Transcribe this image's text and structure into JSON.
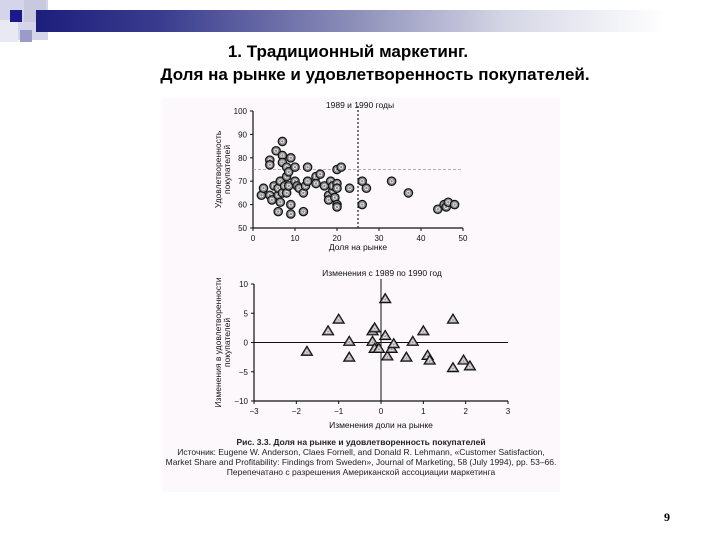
{
  "slide": {
    "title_line1": "1. Традиционный маркетинг.",
    "title_line2": "Доля на рынке и удовлетворенность покупателей.",
    "page_number": "9",
    "accent_color": "#1c1e7c"
  },
  "caption": {
    "figure_label": "Рис. 3.3. Доля на рынке и удовлетворенность покупателей",
    "source": "Источник: Eugene W. Anderson, Claes Fornell, and Donald R. Lehmann, «Customer Satisfaction, Market Share and Profitability: Findings from Sweden», Journal of Marketing, 58 (July 1994), pp. 53–66. Перепечатано с разрешения Американской ассоциации маркетинга"
  },
  "chart_data": [
    {
      "type": "scatter",
      "title": "1989 и 1990 годы",
      "xlabel": "Доля на рынке",
      "ylabel": "Удовлетворенность покупателей",
      "xlim": [
        0,
        50
      ],
      "ylim": [
        50,
        100
      ],
      "xticks": [
        0,
        10,
        20,
        30,
        40,
        50
      ],
      "yticks": [
        50,
        60,
        70,
        80,
        90,
        100
      ],
      "reference_lines": {
        "vertical_x": 25,
        "horizontal_y": 75
      },
      "marker": "circle",
      "points": [
        [
          2,
          64
        ],
        [
          2.5,
          67
        ],
        [
          4,
          64
        ],
        [
          4,
          79
        ],
        [
          4,
          77
        ],
        [
          4.5,
          62
        ],
        [
          5,
          68
        ],
        [
          5.5,
          83
        ],
        [
          6,
          57
        ],
        [
          6,
          64
        ],
        [
          6,
          67
        ],
        [
          6.5,
          61
        ],
        [
          6.5,
          70
        ],
        [
          7,
          87
        ],
        [
          7,
          81
        ],
        [
          7,
          78
        ],
        [
          7,
          65
        ],
        [
          7.5,
          68
        ],
        [
          8,
          76
        ],
        [
          8,
          72
        ],
        [
          8,
          65
        ],
        [
          8.5,
          74
        ],
        [
          8.5,
          68
        ],
        [
          9,
          80
        ],
        [
          9,
          60
        ],
        [
          9,
          56
        ],
        [
          10,
          76
        ],
        [
          10,
          70
        ],
        [
          10.5,
          68
        ],
        [
          11,
          67
        ],
        [
          12,
          65
        ],
        [
          12,
          57
        ],
        [
          12.5,
          68
        ],
        [
          13,
          76
        ],
        [
          13,
          70
        ],
        [
          15,
          72
        ],
        [
          15,
          69
        ],
        [
          16,
          73
        ],
        [
          17,
          68
        ],
        [
          18,
          64
        ],
        [
          18,
          62
        ],
        [
          18.5,
          70
        ],
        [
          19,
          66
        ],
        [
          19,
          68
        ],
        [
          19.5,
          63
        ],
        [
          20,
          69
        ],
        [
          20,
          67
        ],
        [
          20,
          60
        ],
        [
          20,
          59
        ],
        [
          20,
          75
        ],
        [
          21,
          76
        ],
        [
          23,
          67
        ],
        [
          26,
          70
        ],
        [
          26,
          60
        ],
        [
          27,
          67
        ],
        [
          33,
          70
        ],
        [
          37,
          65
        ],
        [
          44,
          58
        ],
        [
          45.5,
          60
        ],
        [
          46,
          59
        ],
        [
          46.5,
          61
        ],
        [
          48,
          60
        ]
      ]
    },
    {
      "type": "scatter",
      "title": "Изменения с 1989 по 1990 год",
      "xlabel": "Изменения доли на рынке",
      "ylabel": "Изменения в удовлетворенности покупателей",
      "xlim": [
        -3,
        3
      ],
      "ylim": [
        -10,
        10
      ],
      "xticks": [
        -3,
        -2,
        -1,
        0,
        1,
        2,
        3
      ],
      "yticks": [
        -10,
        -5,
        0,
        5,
        10
      ],
      "marker": "triangle",
      "points": [
        [
          -1.75,
          -1.5
        ],
        [
          -1.25,
          2
        ],
        [
          -1.0,
          4
        ],
        [
          -0.75,
          0.2
        ],
        [
          -0.75,
          -2.5
        ],
        [
          -0.2,
          2
        ],
        [
          -0.15,
          2.5
        ],
        [
          -0.2,
          0.2
        ],
        [
          -0.15,
          -1
        ],
        [
          -0.05,
          -1
        ],
        [
          0.1,
          7.5
        ],
        [
          0.1,
          1.2
        ],
        [
          0.15,
          -2.3
        ],
        [
          0.25,
          -1
        ],
        [
          0.3,
          -0.2
        ],
        [
          0.6,
          -2.5
        ],
        [
          0.75,
          0.2
        ],
        [
          1.0,
          2
        ],
        [
          1.1,
          -2.2
        ],
        [
          1.15,
          -3
        ],
        [
          1.7,
          4
        ],
        [
          1.7,
          -4.3
        ],
        [
          1.95,
          -3
        ],
        [
          2.1,
          -4
        ]
      ]
    }
  ]
}
